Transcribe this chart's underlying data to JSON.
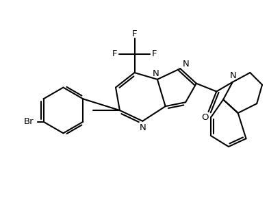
{
  "bg_color": "#ffffff",
  "line_color": "#000000",
  "lw": 1.5,
  "fs": 9.5,
  "fig_w": 3.93,
  "fig_h": 3.24,
  "dpi": 100,
  "xlim": [
    0,
    10
  ],
  "ylim": [
    0,
    8.25
  ]
}
